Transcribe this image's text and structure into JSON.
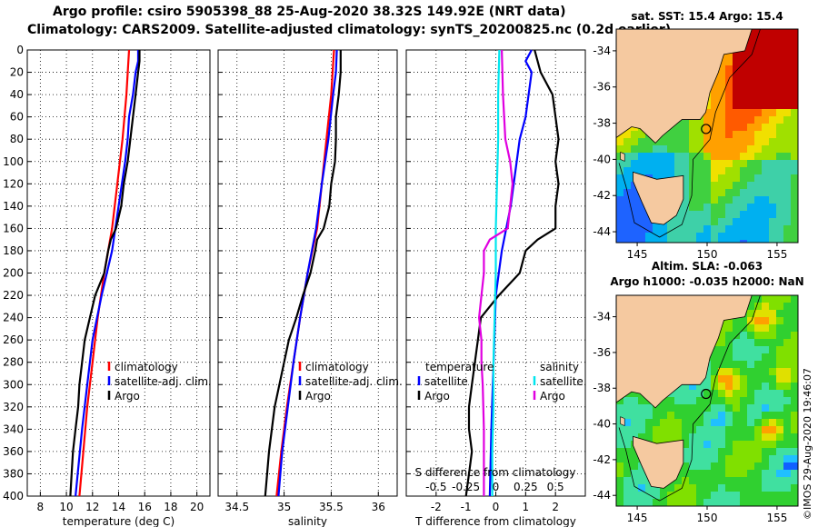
{
  "header": {
    "line1": "Argo profile: csiro 5905398_88 25-Aug-2020 38.32S 149.92E (NRT data)",
    "line2": "Climatology: CARS2009. Satellite-adjusted climatology: synTS_20200825.nc (0.2d earlier)"
  },
  "credit": "©IMOS 29-Aug-2020 19:46:07",
  "colors": {
    "climatology": "#ff0000",
    "satellite": "#0000ff",
    "argo": "#000000",
    "sat_salinity": "#00e5ee",
    "argo_salinity": "#e000e0",
    "land": "#f5c9a0"
  },
  "chart_data": [
    {
      "type": "line",
      "id": "temperature",
      "xlabel": "temperature (deg C)",
      "ylabel": "depth",
      "xlim": [
        7,
        21
      ],
      "ylim": [
        0,
        400
      ],
      "xticks": [
        8,
        10,
        12,
        14,
        16,
        18,
        20
      ],
      "yticks": [
        0,
        20,
        40,
        60,
        80,
        100,
        120,
        140,
        160,
        180,
        200,
        220,
        240,
        260,
        280,
        300,
        320,
        340,
        360,
        380,
        400
      ],
      "grid": true,
      "legend": [
        "climatology",
        "satellite-adj. clim.",
        "Argo"
      ],
      "series": [
        {
          "name": "climatology",
          "color": "#ff0000",
          "depth": [
            0,
            40,
            80,
            120,
            160,
            200,
            240,
            280,
            320,
            360,
            400
          ],
          "values": [
            14.8,
            14.6,
            14.3,
            13.9,
            13.5,
            12.9,
            12.4,
            12.0,
            11.6,
            11.3,
            11.0
          ]
        },
        {
          "name": "satellite-adj. clim.",
          "color": "#0000ff",
          "depth": [
            0,
            10,
            20,
            40,
            60,
            80,
            100,
            140,
            180,
            220,
            260,
            300,
            340,
            400
          ],
          "values": [
            15.5,
            15.5,
            15.3,
            15.1,
            14.8,
            14.7,
            14.5,
            14.0,
            13.5,
            12.7,
            12.0,
            11.6,
            11.2,
            10.7
          ]
        },
        {
          "name": "Argo",
          "color": "#000000",
          "depth": [
            0,
            10,
            20,
            40,
            60,
            80,
            100,
            120,
            140,
            160,
            170,
            180,
            200,
            220,
            240,
            260,
            280,
            300,
            320,
            340,
            360,
            380,
            400
          ],
          "values": [
            15.6,
            15.6,
            15.5,
            15.3,
            15.1,
            14.9,
            14.7,
            14.4,
            14.2,
            13.8,
            13.4,
            13.2,
            12.9,
            12.2,
            11.8,
            11.4,
            11.2,
            11.0,
            10.9,
            10.7,
            10.5,
            10.4,
            10.3
          ]
        }
      ]
    },
    {
      "type": "line",
      "id": "salinity",
      "xlabel": "salinity",
      "xlim": [
        34.3,
        36.2
      ],
      "ylim": [
        0,
        400
      ],
      "xticks": [
        34.5,
        35,
        35.5,
        36
      ],
      "xticklabels": [
        "34.5",
        "35",
        "35.5",
        "36"
      ],
      "grid": true,
      "legend": [
        "climatology",
        "satellite-adj. clim.",
        "Argo"
      ],
      "series": [
        {
          "name": "climatology",
          "color": "#ff0000",
          "depth": [
            0,
            40,
            80,
            120,
            160,
            200,
            240,
            280,
            320,
            360,
            400
          ],
          "values": [
            35.53,
            35.5,
            35.45,
            35.4,
            35.35,
            35.25,
            35.17,
            35.1,
            35.03,
            34.97,
            34.92
          ]
        },
        {
          "name": "satellite-adj. clim.",
          "color": "#0000ff",
          "depth": [
            0,
            20,
            40,
            80,
            120,
            160,
            200,
            240,
            280,
            320,
            360,
            400
          ],
          "values": [
            35.56,
            35.55,
            35.52,
            35.47,
            35.4,
            35.34,
            35.25,
            35.17,
            35.1,
            35.04,
            34.98,
            34.94
          ]
        },
        {
          "name": "Argo",
          "color": "#000000",
          "depth": [
            0,
            20,
            40,
            60,
            80,
            100,
            120,
            140,
            160,
            170,
            180,
            200,
            220,
            240,
            260,
            280,
            300,
            320,
            340,
            360,
            380,
            400
          ],
          "values": [
            35.6,
            35.6,
            35.58,
            35.55,
            35.55,
            35.54,
            35.5,
            35.48,
            35.42,
            35.35,
            35.33,
            35.28,
            35.2,
            35.13,
            35.05,
            35.0,
            34.95,
            34.9,
            34.87,
            34.84,
            34.82,
            34.8
          ]
        }
      ]
    },
    {
      "type": "line",
      "id": "difference",
      "xlabel": "T difference from climatology",
      "xlabel_top": "S difference from climatology",
      "xlim": [
        -3,
        3
      ],
      "ylim": [
        0,
        400
      ],
      "xticks": [
        -2,
        -1,
        0,
        1,
        2
      ],
      "xticklabels": [
        "-2",
        "-1",
        "0",
        "1",
        "2"
      ],
      "top_ticks": [
        -0.5,
        -0.25,
        0,
        0.25,
        0.5
      ],
      "top_ticklabels": [
        "-0.5",
        "-0.25",
        "0",
        "0.25",
        "0.5"
      ],
      "grid": true,
      "legend_temperature": {
        "heading": "temperature",
        "items": [
          "satellite",
          "Argo"
        ]
      },
      "legend_salinity": {
        "heading": "salinity",
        "items": [
          "satellite",
          "Argo"
        ]
      },
      "series": [
        {
          "name": "temperature satellite",
          "color": "#0000ff",
          "depth": [
            0,
            10,
            20,
            40,
            60,
            80,
            100,
            140,
            180,
            220,
            260,
            300,
            340,
            400
          ],
          "values": [
            1.2,
            1.0,
            1.2,
            1.1,
            1.0,
            0.8,
            0.7,
            0.5,
            0.2,
            0.0,
            -0.05,
            -0.1,
            -0.15,
            -0.2
          ]
        },
        {
          "name": "temperature Argo",
          "color": "#000000",
          "depth": [
            0,
            20,
            40,
            60,
            80,
            100,
            120,
            140,
            160,
            170,
            180,
            200,
            220,
            240,
            260,
            280,
            300,
            320,
            340,
            360,
            380,
            400
          ],
          "values": [
            1.3,
            1.5,
            1.9,
            2.0,
            2.1,
            2.0,
            2.1,
            2.0,
            2.0,
            1.4,
            1.0,
            0.8,
            0.1,
            -0.5,
            -0.6,
            -0.7,
            -0.8,
            -0.9,
            -0.9,
            -0.8,
            -0.9,
            -1.0
          ]
        },
        {
          "name": "salinity satellite",
          "color": "#00e5ee",
          "depth": [
            0,
            40,
            80,
            120,
            160,
            200,
            240,
            280,
            320,
            360,
            400
          ],
          "values": [
            0.03,
            0.02,
            0.02,
            0.01,
            0.0,
            0.0,
            -0.01,
            -0.02,
            -0.02,
            -0.03,
            -0.03
          ]
        },
        {
          "name": "salinity Argo",
          "color": "#e000e0",
          "depth": [
            0,
            40,
            80,
            100,
            120,
            140,
            160,
            170,
            180,
            200,
            220,
            240,
            260,
            280,
            300,
            340,
            400
          ],
          "values": [
            0.05,
            0.06,
            0.08,
            0.12,
            0.14,
            0.12,
            0.1,
            -0.05,
            -0.1,
            -0.1,
            -0.12,
            -0.14,
            -0.12,
            -0.12,
            -0.11,
            -0.1,
            -0.1
          ]
        }
      ]
    },
    {
      "type": "heatmap",
      "id": "sst_map",
      "title": "sat. SST: 15.4 Argo: 15.4",
      "xticks": [
        145,
        150,
        155
      ],
      "xticklabels": [
        "145",
        "150",
        "155"
      ],
      "yticks": [
        -34,
        -36,
        -38,
        -40,
        -42,
        -44
      ],
      "yticklabels": [
        "-34",
        "-36",
        "-38",
        "-40",
        "-42",
        "-44"
      ],
      "xlim": [
        143.5,
        156.5
      ],
      "ylim": [
        -44.6,
        -32.8
      ],
      "profile_lon": 149.92,
      "profile_lat": -38.32
    },
    {
      "type": "heatmap",
      "id": "sla_map",
      "title": "Altim. SLA: -0.063",
      "subtitle": "Argo h1000: -0.035 h2000: NaN",
      "xticks": [
        145,
        150,
        155
      ],
      "xticklabels": [
        "145",
        "150",
        "155"
      ],
      "yticks": [
        -34,
        -36,
        -38,
        -40,
        -42,
        -44
      ],
      "yticklabels": [
        "-34",
        "-36",
        "-38",
        "-40",
        "-42",
        "-44"
      ],
      "xlim": [
        143.5,
        156.5
      ],
      "ylim": [
        -44.6,
        -32.8
      ],
      "profile_lon": 149.92,
      "profile_lat": -38.32
    }
  ]
}
